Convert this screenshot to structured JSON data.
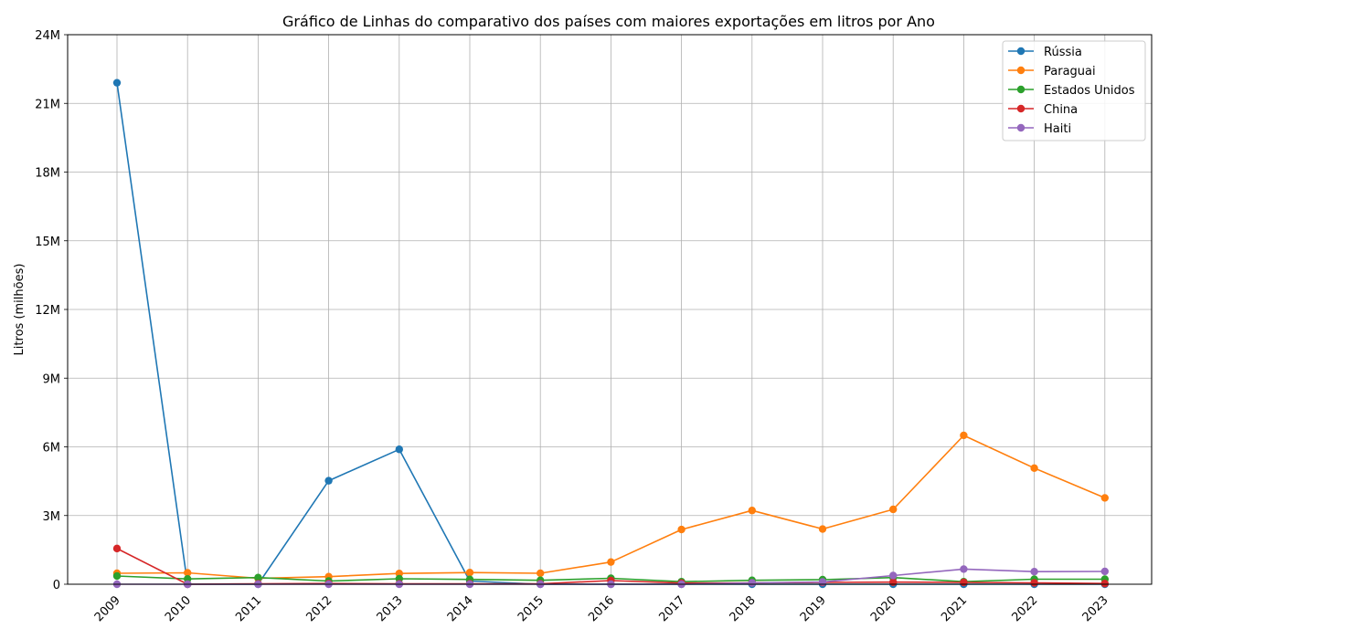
{
  "chart_data": {
    "type": "line",
    "title": "Gráfico de Linhas do comparativo dos países com maiores exportações em litros por Ano",
    "xlabel": "",
    "ylabel": "Litros (milhões)",
    "categories": [
      "2009",
      "2010",
      "2011",
      "2012",
      "2013",
      "2014",
      "2015",
      "2016",
      "2017",
      "2018",
      "2019",
      "2020",
      "2021",
      "2022",
      "2023"
    ],
    "ylim": [
      0,
      24000000
    ],
    "yticks": [
      0,
      3000000,
      6000000,
      9000000,
      12000000,
      15000000,
      18000000,
      21000000,
      24000000
    ],
    "ytick_labels": [
      "0",
      "3M",
      "6M",
      "9M",
      "12M",
      "15M",
      "18M",
      "21M",
      "24M"
    ],
    "grid": true,
    "legend_position": "top-right",
    "series": [
      {
        "name": "Rússia",
        "color": "#1f77b4",
        "values": [
          21900000,
          0,
          0,
          4520000,
          5890000,
          140000,
          0,
          0,
          0,
          0,
          0,
          0,
          0,
          0,
          0
        ]
      },
      {
        "name": "Paraguai",
        "color": "#ff7f0e",
        "values": [
          480000,
          500000,
          260000,
          330000,
          470000,
          510000,
          480000,
          970000,
          2390000,
          3220000,
          2410000,
          3270000,
          6500000,
          5070000,
          3770000
        ]
      },
      {
        "name": "Estados Unidos",
        "color": "#2ca02c",
        "values": [
          360000,
          230000,
          290000,
          140000,
          240000,
          210000,
          170000,
          260000,
          110000,
          170000,
          200000,
          290000,
          110000,
          220000,
          220000
        ]
      },
      {
        "name": "China",
        "color": "#d62728",
        "values": [
          1560000,
          0,
          20000,
          30000,
          20000,
          20000,
          20000,
          160000,
          50000,
          60000,
          80000,
          90000,
          80000,
          60000,
          30000
        ]
      },
      {
        "name": "Haiti",
        "color": "#9467bd",
        "values": [
          0,
          0,
          0,
          0,
          0,
          0,
          0,
          0,
          0,
          60000,
          100000,
          380000,
          660000,
          550000,
          560000
        ]
      }
    ]
  }
}
